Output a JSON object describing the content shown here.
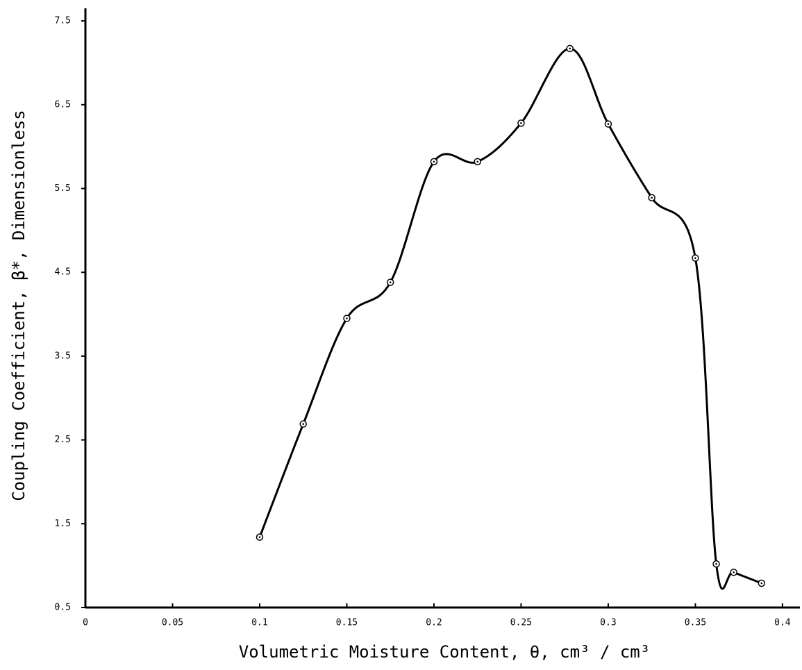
{
  "chart_data": {
    "type": "line",
    "xlabel": "Volumetric Moisture Content, θ, cm³ / cm³",
    "ylabel": "Coupling Coefficient, β*, Dimensionless",
    "x": [
      0.1,
      0.125,
      0.15,
      0.175,
      0.2,
      0.225,
      0.25,
      0.278,
      0.3,
      0.325,
      0.35,
      0.362,
      0.372,
      0.388
    ],
    "series": [
      {
        "color": "#000000",
        "values": [
          1.34,
          2.69,
          3.95,
          4.38,
          5.82,
          5.82,
          6.28,
          7.17,
          6.27,
          5.39,
          4.67,
          1.02,
          0.92,
          0.79
        ]
      }
    ],
    "xlim": [
      0,
      0.41
    ],
    "ylim": [
      0.5,
      7.65
    ],
    "xticks": [
      0,
      0.05,
      0.1,
      0.15,
      0.2,
      0.25,
      0.3,
      0.35,
      0.4
    ],
    "yticks": [
      0.5,
      1.5,
      2.5,
      3.5,
      4.5,
      5.5,
      6.5,
      7.5
    ],
    "grid": false
  }
}
